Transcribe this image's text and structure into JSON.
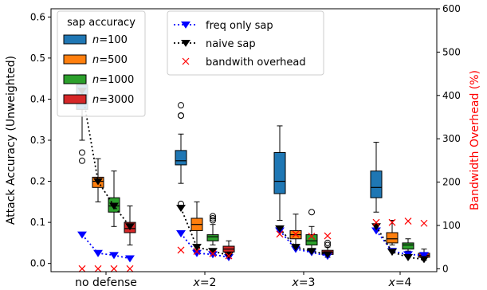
{
  "chart_data": {
    "type": "box",
    "x_categories": [
      "no defense",
      "x=2",
      "x=3",
      "x=4"
    ],
    "x_tick_labels": [
      {
        "prefix": "",
        "italic": "",
        "suffix": "no defense"
      },
      {
        "prefix": "",
        "italic": "x",
        "suffix": "=2"
      },
      {
        "prefix": "",
        "italic": "x",
        "suffix": "=3"
      },
      {
        "prefix": "",
        "italic": "x",
        "suffix": "=4"
      }
    ],
    "ylabel_left": "Attack Accuracy (Unweighted)",
    "ylabel_right": "Bandwidth Overhead (%)",
    "ylim_left": [
      -0.02,
      0.62
    ],
    "ylim_right": [
      -6.7,
      600
    ],
    "yticks_left": [
      "0.0",
      "0.1",
      "0.2",
      "0.3",
      "0.4",
      "0.5",
      "0.6"
    ],
    "yticks_right": [
      "0",
      "100",
      "200",
      "300",
      "400",
      "500",
      "600"
    ],
    "box_series": [
      {
        "n": "100",
        "color": "#1f77b4",
        "boxes": [
          {
            "whislo": 0.3,
            "q1": 0.375,
            "med": 0.41,
            "q3": 0.435,
            "whishi": 0.46,
            "fliers": [
              0.27,
              0.25
            ]
          },
          {
            "whislo": 0.195,
            "q1": 0.24,
            "med": 0.25,
            "q3": 0.275,
            "whishi": 0.315,
            "fliers": [
              0.385,
              0.36,
              0.36,
              0.145
            ]
          },
          {
            "whislo": 0.105,
            "q1": 0.17,
            "med": 0.2,
            "q3": 0.27,
            "whishi": 0.335,
            "fliers": []
          },
          {
            "whislo": 0.125,
            "q1": 0.16,
            "med": 0.185,
            "q3": 0.225,
            "whishi": 0.295,
            "fliers": []
          }
        ]
      },
      {
        "n": "500",
        "color": "#ff7f0e",
        "boxes": [
          {
            "whislo": 0.15,
            "q1": 0.185,
            "med": 0.2,
            "q3": 0.21,
            "whishi": 0.255,
            "fliers": []
          },
          {
            "whislo": 0.045,
            "q1": 0.08,
            "med": 0.095,
            "q3": 0.11,
            "whishi": 0.15,
            "fliers": []
          },
          {
            "whislo": 0.04,
            "q1": 0.06,
            "med": 0.07,
            "q3": 0.08,
            "whishi": 0.12,
            "fliers": []
          },
          {
            "whislo": 0.045,
            "q1": 0.05,
            "med": 0.06,
            "q3": 0.075,
            "whishi": 0.105,
            "fliers": []
          }
        ]
      },
      {
        "n": "1000",
        "color": "#2ca02c",
        "boxes": [
          {
            "whislo": 0.09,
            "q1": 0.125,
            "med": 0.14,
            "q3": 0.16,
            "whishi": 0.225,
            "fliers": []
          },
          {
            "whislo": 0.045,
            "q1": 0.055,
            "med": 0.065,
            "q3": 0.07,
            "whishi": 0.095,
            "fliers": [
              0.115,
              0.11,
              0.105
            ]
          },
          {
            "whislo": 0.035,
            "q1": 0.045,
            "med": 0.055,
            "q3": 0.07,
            "whishi": 0.09,
            "fliers": [
              0.125
            ]
          },
          {
            "whislo": 0.03,
            "q1": 0.035,
            "med": 0.045,
            "q3": 0.05,
            "whishi": 0.06,
            "fliers": []
          }
        ]
      },
      {
        "n": "3000",
        "color": "#d62728",
        "boxes": [
          {
            "whislo": 0.045,
            "q1": 0.075,
            "med": 0.085,
            "q3": 0.1,
            "whishi": 0.14,
            "fliers": []
          },
          {
            "whislo": 0.02,
            "q1": 0.028,
            "med": 0.035,
            "q3": 0.042,
            "whishi": 0.055,
            "fliers": []
          },
          {
            "whislo": 0.015,
            "q1": 0.022,
            "med": 0.027,
            "q3": 0.032,
            "whishi": 0.04,
            "fliers": [
              0.05,
              0.045
            ]
          },
          {
            "whislo": 0.008,
            "q1": 0.015,
            "med": 0.02,
            "q3": 0.025,
            "whishi": 0.035,
            "fliers": []
          }
        ]
      }
    ],
    "line_series": [
      {
        "name": "freq only sap",
        "color": "#0000ff",
        "marker": "triangle-down",
        "style": "dotted",
        "values": [
          [
            0.07,
            0.025,
            0.02,
            0.012
          ],
          [
            0.073,
            0.025,
            0.022,
            0.015
          ],
          [
            0.08,
            0.035,
            0.027,
            0.018
          ],
          [
            0.08,
            0.03,
            0.022,
            0.02
          ]
        ]
      },
      {
        "name": "naive sap",
        "color": "#000000",
        "marker": "triangle-down",
        "style": "dotted",
        "values": [
          [
            0.42,
            0.2,
            0.14,
            0.09
          ],
          [
            0.135,
            0.04,
            0.03,
            0.02
          ],
          [
            0.085,
            0.04,
            0.03,
            0.022
          ],
          [
            0.09,
            0.028,
            0.015,
            0.01
          ]
        ]
      },
      {
        "name": "bandwith overhead",
        "color": "#ff0000",
        "marker": "x",
        "axis": "right",
        "values": [
          [
            0,
            0,
            0,
            0
          ],
          [
            43,
            40,
            35,
            30
          ],
          [
            80,
            80,
            75,
            76
          ],
          [
            107,
            107,
            110,
            105
          ]
        ]
      }
    ],
    "legend_boxes": {
      "title": "sap accuracy",
      "entries": [
        {
          "prefix": "",
          "italic": "n",
          "suffix": "=100"
        },
        {
          "prefix": "",
          "italic": "n",
          "suffix": "=500"
        },
        {
          "prefix": "",
          "italic": "n",
          "suffix": "=1000"
        },
        {
          "prefix": "",
          "italic": "n",
          "suffix": "=3000"
        }
      ],
      "placement": "top-left"
    },
    "legend_lines": {
      "entries": [
        "freq only sap",
        "naive sap",
        "bandwith overhead"
      ],
      "placement": "top-center"
    },
    "right_axis_color": "#ff0000",
    "grid": false
  }
}
